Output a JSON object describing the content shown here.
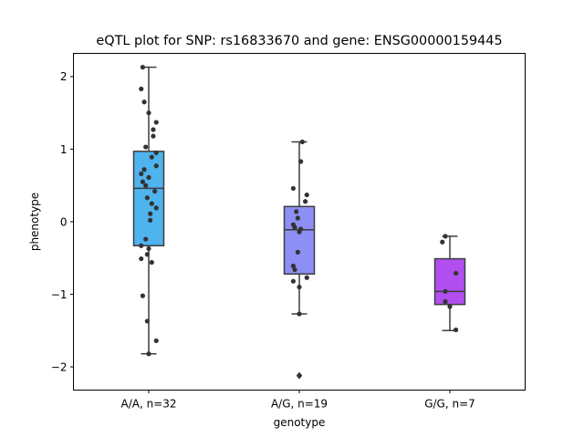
{
  "chart_data": {
    "type": "box",
    "title": "eQTL plot for SNP: rs16833670 and gene: ENSG00000159445",
    "xlabel": "genotype",
    "ylabel": "phenotype",
    "ylim": [
      -2.32,
      2.32
    ],
    "yticks": [
      -2,
      -1,
      0,
      1,
      2
    ],
    "ytick_labels": [
      "−2",
      "−1",
      "0",
      "1",
      "2"
    ],
    "grid": false,
    "categories": [
      "A/A, n=32",
      "A/G, n=19",
      "G/G, n=7"
    ],
    "colors": {
      "box_fills": [
        "#4fb3ee",
        "#8d8ef6",
        "#b14ff0"
      ],
      "box_edge": "#3d3d3d",
      "points": "#333333"
    },
    "boxes": [
      {
        "category": "A/A, n=32",
        "q1": -0.33,
        "median": 0.46,
        "q3": 0.97,
        "whisker_low": -1.82,
        "whisker_high": 2.13,
        "outliers": []
      },
      {
        "category": "A/G, n=19",
        "q1": -0.72,
        "median": -0.11,
        "q3": 0.21,
        "whisker_low": -1.27,
        "whisker_high": 1.1,
        "outliers": [
          -2.12
        ]
      },
      {
        "category": "G/G, n=7",
        "q1": -1.14,
        "median": -0.96,
        "q3": -0.51,
        "whisker_low": -1.5,
        "whisker_high": -0.2,
        "outliers": []
      }
    ],
    "points": [
      [
        {
          "dx": -0.04,
          "y": 2.13
        },
        {
          "dx": -0.05,
          "y": 1.83
        },
        {
          "dx": -0.03,
          "y": 1.65
        },
        {
          "dx": 0.0,
          "y": 1.5
        },
        {
          "dx": 0.05,
          "y": 1.37
        },
        {
          "dx": 0.03,
          "y": 1.27
        },
        {
          "dx": 0.03,
          "y": 1.18
        },
        {
          "dx": -0.02,
          "y": 1.03
        },
        {
          "dx": 0.05,
          "y": 0.95
        },
        {
          "dx": 0.02,
          "y": 0.89
        },
        {
          "dx": 0.05,
          "y": 0.77
        },
        {
          "dx": -0.03,
          "y": 0.72
        },
        {
          "dx": -0.05,
          "y": 0.66
        },
        {
          "dx": 0.0,
          "y": 0.61
        },
        {
          "dx": -0.04,
          "y": 0.55
        },
        {
          "dx": -0.02,
          "y": 0.5
        },
        {
          "dx": 0.04,
          "y": 0.42
        },
        {
          "dx": -0.01,
          "y": 0.33
        },
        {
          "dx": 0.02,
          "y": 0.25
        },
        {
          "dx": 0.05,
          "y": 0.19
        },
        {
          "dx": 0.01,
          "y": 0.11
        },
        {
          "dx": 0.01,
          "y": 0.02
        },
        {
          "dx": -0.02,
          "y": -0.24
        },
        {
          "dx": -0.05,
          "y": -0.33
        },
        {
          "dx": 0.0,
          "y": -0.37
        },
        {
          "dx": -0.01,
          "y": -0.45
        },
        {
          "dx": -0.05,
          "y": -0.51
        },
        {
          "dx": 0.02,
          "y": -0.56
        },
        {
          "dx": -0.04,
          "y": -1.02
        },
        {
          "dx": -0.01,
          "y": -1.37
        },
        {
          "dx": 0.05,
          "y": -1.64
        },
        {
          "dx": 0.0,
          "y": -1.82
        }
      ],
      [
        {
          "dx": 0.02,
          "y": 1.1
        },
        {
          "dx": 0.01,
          "y": 0.83
        },
        {
          "dx": -0.04,
          "y": 0.46
        },
        {
          "dx": 0.05,
          "y": 0.37
        },
        {
          "dx": 0.04,
          "y": 0.28
        },
        {
          "dx": -0.02,
          "y": 0.14
        },
        {
          "dx": -0.01,
          "y": 0.05
        },
        {
          "dx": -0.04,
          "y": -0.04
        },
        {
          "dx": -0.03,
          "y": -0.08
        },
        {
          "dx": 0.01,
          "y": -0.1
        },
        {
          "dx": 0.0,
          "y": -0.14
        },
        {
          "dx": -0.01,
          "y": -0.42
        },
        {
          "dx": -0.04,
          "y": -0.61
        },
        {
          "dx": -0.03,
          "y": -0.66
        },
        {
          "dx": 0.05,
          "y": -0.77
        },
        {
          "dx": -0.04,
          "y": -0.82
        },
        {
          "dx": 0.0,
          "y": -0.9
        },
        {
          "dx": 0.0,
          "y": -1.27
        },
        {
          "dx": 0.0,
          "y": -2.12
        }
      ],
      [
        {
          "dx": -0.03,
          "y": -0.2
        },
        {
          "dx": -0.05,
          "y": -0.28
        },
        {
          "dx": 0.04,
          "y": -0.71
        },
        {
          "dx": -0.03,
          "y": -0.96
        },
        {
          "dx": -0.03,
          "y": -1.1
        },
        {
          "dx": 0.0,
          "y": -1.17
        },
        {
          "dx": 0.04,
          "y": -1.49
        }
      ]
    ]
  }
}
